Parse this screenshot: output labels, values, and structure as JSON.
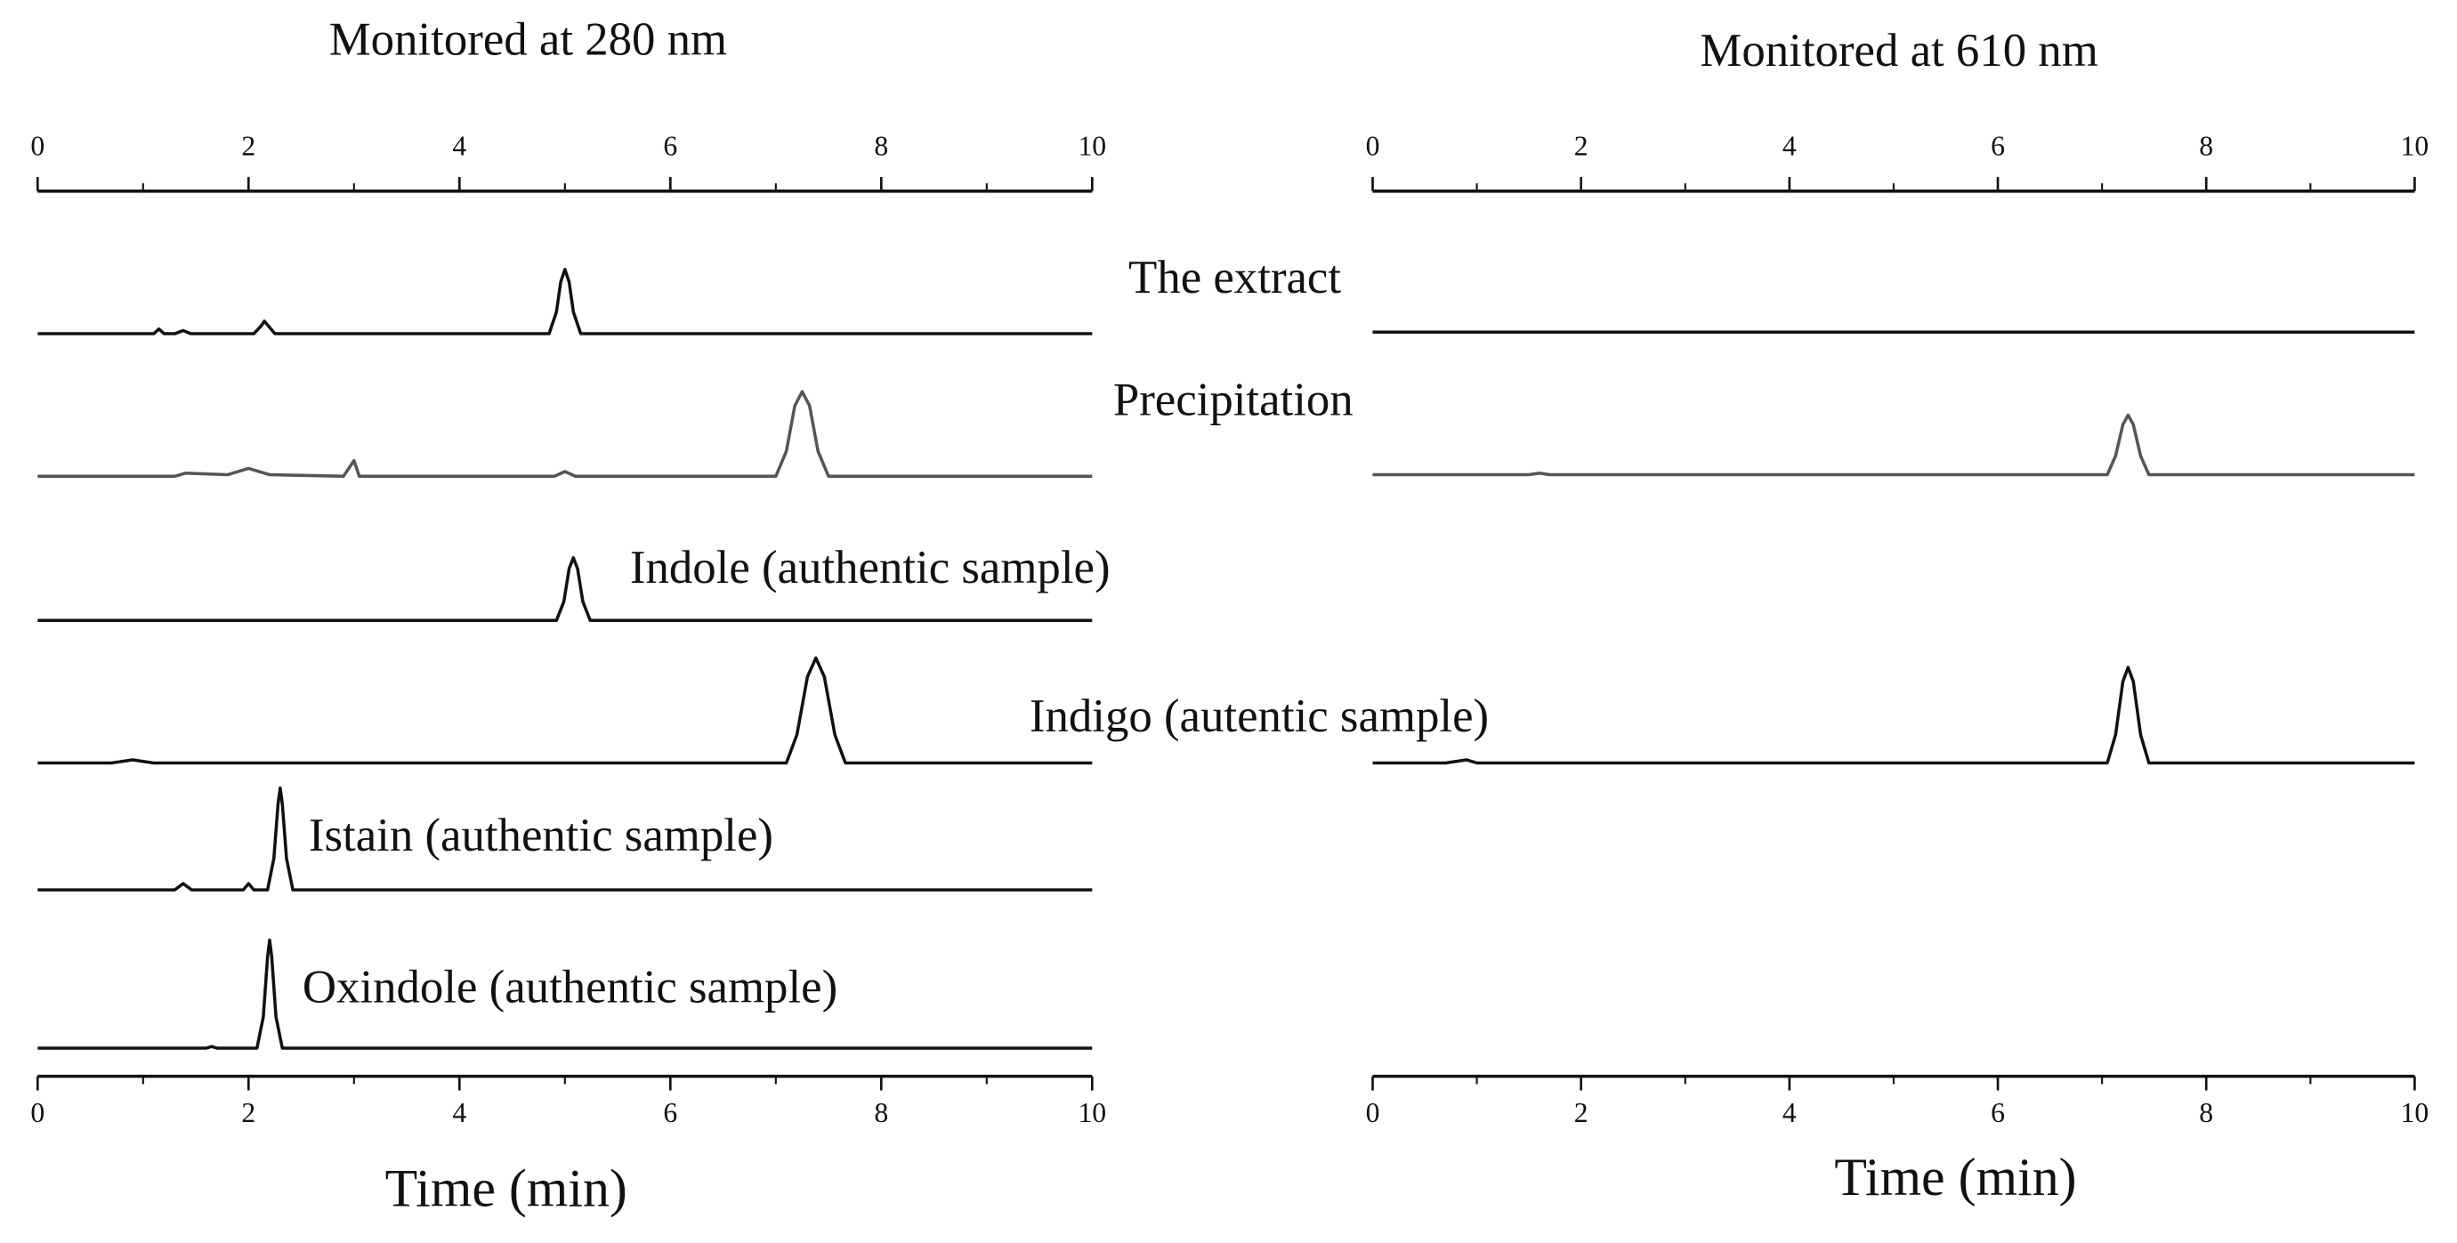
{
  "chart_data": [
    {
      "type": "line",
      "title": "Monitored at 280 nm",
      "x_label": "Time (min)",
      "xlim": [
        0,
        10
      ],
      "xticks": [
        0,
        2,
        4,
        6,
        8,
        10
      ],
      "minor_xticks": [
        1,
        3,
        5,
        7,
        9
      ],
      "ylim": [
        0,
        100
      ],
      "series": [
        {
          "name": "The extract",
          "color": "#111111",
          "x": [
            0,
            1.1,
            1.15,
            1.2,
            1.3,
            1.38,
            1.45,
            2.05,
            2.12,
            2.15,
            2.2,
            2.25,
            4.85,
            4.92,
            4.96,
            5.0,
            5.04,
            5.08,
            5.15,
            10
          ],
          "values": [
            0,
            0,
            3,
            0,
            0,
            2,
            0,
            0,
            5,
            8,
            4,
            0,
            0,
            14,
            33,
            41,
            33,
            14,
            0,
            0
          ]
        },
        {
          "name": "Precipitation",
          "color": "#555555",
          "x": [
            0,
            1.3,
            1.4,
            1.8,
            2.0,
            2.2,
            2.9,
            2.95,
            3.0,
            3.05,
            4.9,
            5.0,
            5.1,
            7.0,
            7.1,
            7.18,
            7.25,
            7.32,
            7.4,
            7.5,
            10
          ],
          "values": [
            0,
            0,
            2,
            1,
            5,
            1,
            0,
            5,
            10,
            0,
            0,
            3,
            0,
            0,
            16,
            45,
            54,
            45,
            16,
            0,
            0
          ]
        },
        {
          "name": "Indole (authentic sample)",
          "color": "#111111",
          "x": [
            0,
            4.92,
            4.99,
            5.04,
            5.08,
            5.12,
            5.17,
            5.24,
            10
          ],
          "values": [
            0,
            0,
            12,
            33,
            40,
            33,
            12,
            0,
            0
          ]
        },
        {
          "name": "Indigo (autentic sample)",
          "color": "#111111",
          "x": [
            0,
            0.7,
            0.9,
            1.1,
            7.1,
            7.2,
            7.3,
            7.38,
            7.46,
            7.56,
            7.66,
            10
          ],
          "values": [
            0,
            0,
            2,
            0,
            0,
            18,
            55,
            67,
            55,
            18,
            0,
            0
          ]
        },
        {
          "name": "Istain (authentic sample)",
          "color": "#111111",
          "x": [
            0,
            1.3,
            1.38,
            1.46,
            1.95,
            2.0,
            2.05,
            2.18,
            2.24,
            2.28,
            2.3,
            2.32,
            2.36,
            2.42,
            10
          ],
          "values": [
            0,
            0,
            4,
            0,
            0,
            4,
            0,
            0,
            20,
            55,
            65,
            55,
            20,
            0,
            0
          ]
        },
        {
          "name": "Oxindole (authentic sample)",
          "color": "#111111",
          "x": [
            0,
            1.6,
            1.65,
            1.7,
            2.08,
            2.14,
            2.18,
            2.2,
            2.22,
            2.26,
            2.32,
            10
          ],
          "values": [
            0,
            0,
            1,
            0,
            0,
            20,
            58,
            69,
            58,
            20,
            0,
            0
          ]
        }
      ]
    },
    {
      "type": "line",
      "title": "Monitored at 610 nm",
      "x_label": "Time (min)",
      "xlim": [
        0,
        10
      ],
      "xticks": [
        0,
        2,
        4,
        6,
        8,
        10
      ],
      "minor_xticks": [
        1,
        3,
        5,
        7,
        9
      ],
      "ylim": [
        0,
        100
      ],
      "series": [
        {
          "color": "#111111",
          "x": [
            0,
            10
          ],
          "values": [
            0,
            0
          ]
        },
        {
          "color": "#555555",
          "x": [
            0,
            1.5,
            1.6,
            1.7,
            7.05,
            7.13,
            7.2,
            7.25,
            7.3,
            7.37,
            7.45,
            10
          ],
          "values": [
            0,
            0,
            1,
            0,
            0,
            12,
            32,
            38,
            32,
            12,
            0,
            0
          ]
        },
        {
          "color": "#111111",
          "x": [
            0,
            0.7,
            0.9,
            1.0,
            7.05,
            7.13,
            7.2,
            7.25,
            7.3,
            7.37,
            7.45,
            10
          ],
          "values": [
            0,
            0,
            2,
            0,
            0,
            18,
            52,
            61,
            52,
            18,
            0,
            0
          ]
        }
      ]
    }
  ]
}
